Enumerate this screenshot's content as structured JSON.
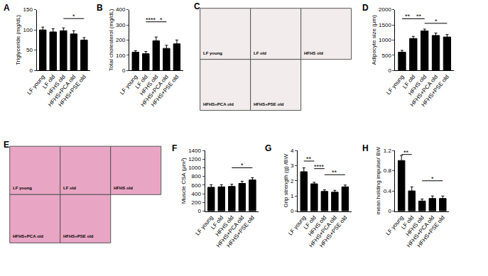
{
  "chart_data": [
    {
      "panel": "A",
      "type": "bar",
      "ylabel": "Triglyceride (mg/dL)",
      "categories": [
        "LF young",
        "LF old",
        "HFHS old",
        "HFHS+PCA old",
        "HFHS+PSE old"
      ],
      "values": [
        100,
        95,
        98,
        90,
        75
      ],
      "errors": [
        7,
        8,
        7,
        8,
        6
      ],
      "color": "#000000",
      "ylim": [
        0,
        150
      ],
      "yticks": [
        0,
        50,
        100,
        150
      ],
      "annotations": [
        {
          "from": 2,
          "to": 4,
          "y": 128,
          "text": "*"
        }
      ]
    },
    {
      "panel": "B",
      "type": "bar",
      "ylabel": "Total cholesterol (mg/dL)",
      "categories": [
        "LF young",
        "LF old",
        "HFHS old",
        "HFHS+PCA old",
        "HFHS+PSE old"
      ],
      "values": [
        120,
        110,
        195,
        145,
        175
      ],
      "errors": [
        10,
        15,
        25,
        20,
        25
      ],
      "color": "#000000",
      "ylim": [
        0,
        400
      ],
      "yticks": [
        0,
        100,
        200,
        300,
        400
      ],
      "annotations": [
        {
          "from": 1,
          "to": 2,
          "y": 320,
          "text": "****"
        },
        {
          "from": 2,
          "to": 3,
          "y": 320,
          "text": "*"
        }
      ]
    },
    {
      "panel": "C",
      "type": "image",
      "labels": [
        "LF young",
        "LF old",
        "HFHS old",
        "HFHS+PCA old",
        "HFHS+PSE old"
      ],
      "color": "#f2ecec"
    },
    {
      "panel": "D",
      "type": "bar",
      "ylabel": "Adipocyte size (μm)",
      "categories": [
        "LF young",
        "LF old",
        "HFHS old",
        "HFHS+PCA old",
        "HFHS+PSE old"
      ],
      "values": [
        600,
        1050,
        1300,
        1150,
        1100
      ],
      "errors": [
        60,
        70,
        60,
        80,
        80
      ],
      "color": "#000000",
      "ylim": [
        0,
        2000
      ],
      "yticks": [
        0,
        500,
        1000,
        1500,
        2000
      ],
      "annotations": [
        {
          "from": 0,
          "to": 1,
          "y": 1700,
          "text": "**"
        },
        {
          "from": 1,
          "to": 2,
          "y": 1700,
          "text": "**"
        },
        {
          "from": 2,
          "to": 4,
          "y": 1550,
          "text": "*"
        }
      ]
    },
    {
      "panel": "E",
      "type": "image",
      "labels": [
        "LF young",
        "LF old",
        "HFHS old",
        "HFHS+PCA old",
        "HFHS+PSE old"
      ],
      "color": "#e9a6c4"
    },
    {
      "panel": "F",
      "type": "bar",
      "ylabel": "Muscle CSA (μm²)",
      "categories": [
        "LF young",
        "LF old",
        "HFHS old",
        "HFHS+PCA old",
        "HFHS+PSE old"
      ],
      "values": [
        550,
        560,
        570,
        640,
        720
      ],
      "errors": [
        60,
        50,
        50,
        50,
        50
      ],
      "color": "#000000",
      "ylim": [
        0,
        1400
      ],
      "yticks": [
        0,
        200,
        400,
        600,
        800,
        1000,
        1200,
        1400
      ],
      "annotations": [
        {
          "from": 2,
          "to": 4,
          "y": 1000,
          "text": "*"
        }
      ]
    },
    {
      "panel": "G",
      "type": "bar",
      "ylabel": "Grip strength (g) /BW",
      "categories": [
        "LF young",
        "LF old",
        "HFHS old",
        "HFHS+PCA old",
        "HFHS+PSE old"
      ],
      "values": [
        2.6,
        1.8,
        1.3,
        1.25,
        1.6
      ],
      "errors": [
        0.25,
        0.1,
        0.1,
        0.12,
        0.12
      ],
      "color": "#000000",
      "ylim": [
        0,
        4
      ],
      "yticks": [
        0,
        1,
        2,
        3,
        4
      ],
      "annotations": [
        {
          "from": 0,
          "to": 1,
          "y": 3.3,
          "text": "**"
        },
        {
          "from": 1,
          "to": 2,
          "y": 2.8,
          "text": "****"
        },
        {
          "from": 2,
          "to": 4,
          "y": 2.4,
          "text": "**"
        }
      ]
    },
    {
      "panel": "H",
      "type": "bar",
      "ylabel": "mean holding impulse/ BW",
      "categories": [
        "LF young",
        "LF old",
        "HFHS old",
        "HFHS+PCA old",
        "HFHS+PSE old"
      ],
      "values": [
        1.0,
        0.4,
        0.2,
        0.25,
        0.25
      ],
      "errors": [
        0.1,
        0.08,
        0.04,
        0.05,
        0.05
      ],
      "color": "#000000",
      "ylim": [
        0,
        1.2
      ],
      "yticks": [
        0,
        0.4,
        0.8,
        1.2
      ],
      "annotations": [
        {
          "from": 0,
          "to": 1,
          "y": 1.12,
          "text": "**"
        },
        {
          "from": 2,
          "to": 4,
          "y": 0.6,
          "text": "*"
        }
      ]
    }
  ]
}
